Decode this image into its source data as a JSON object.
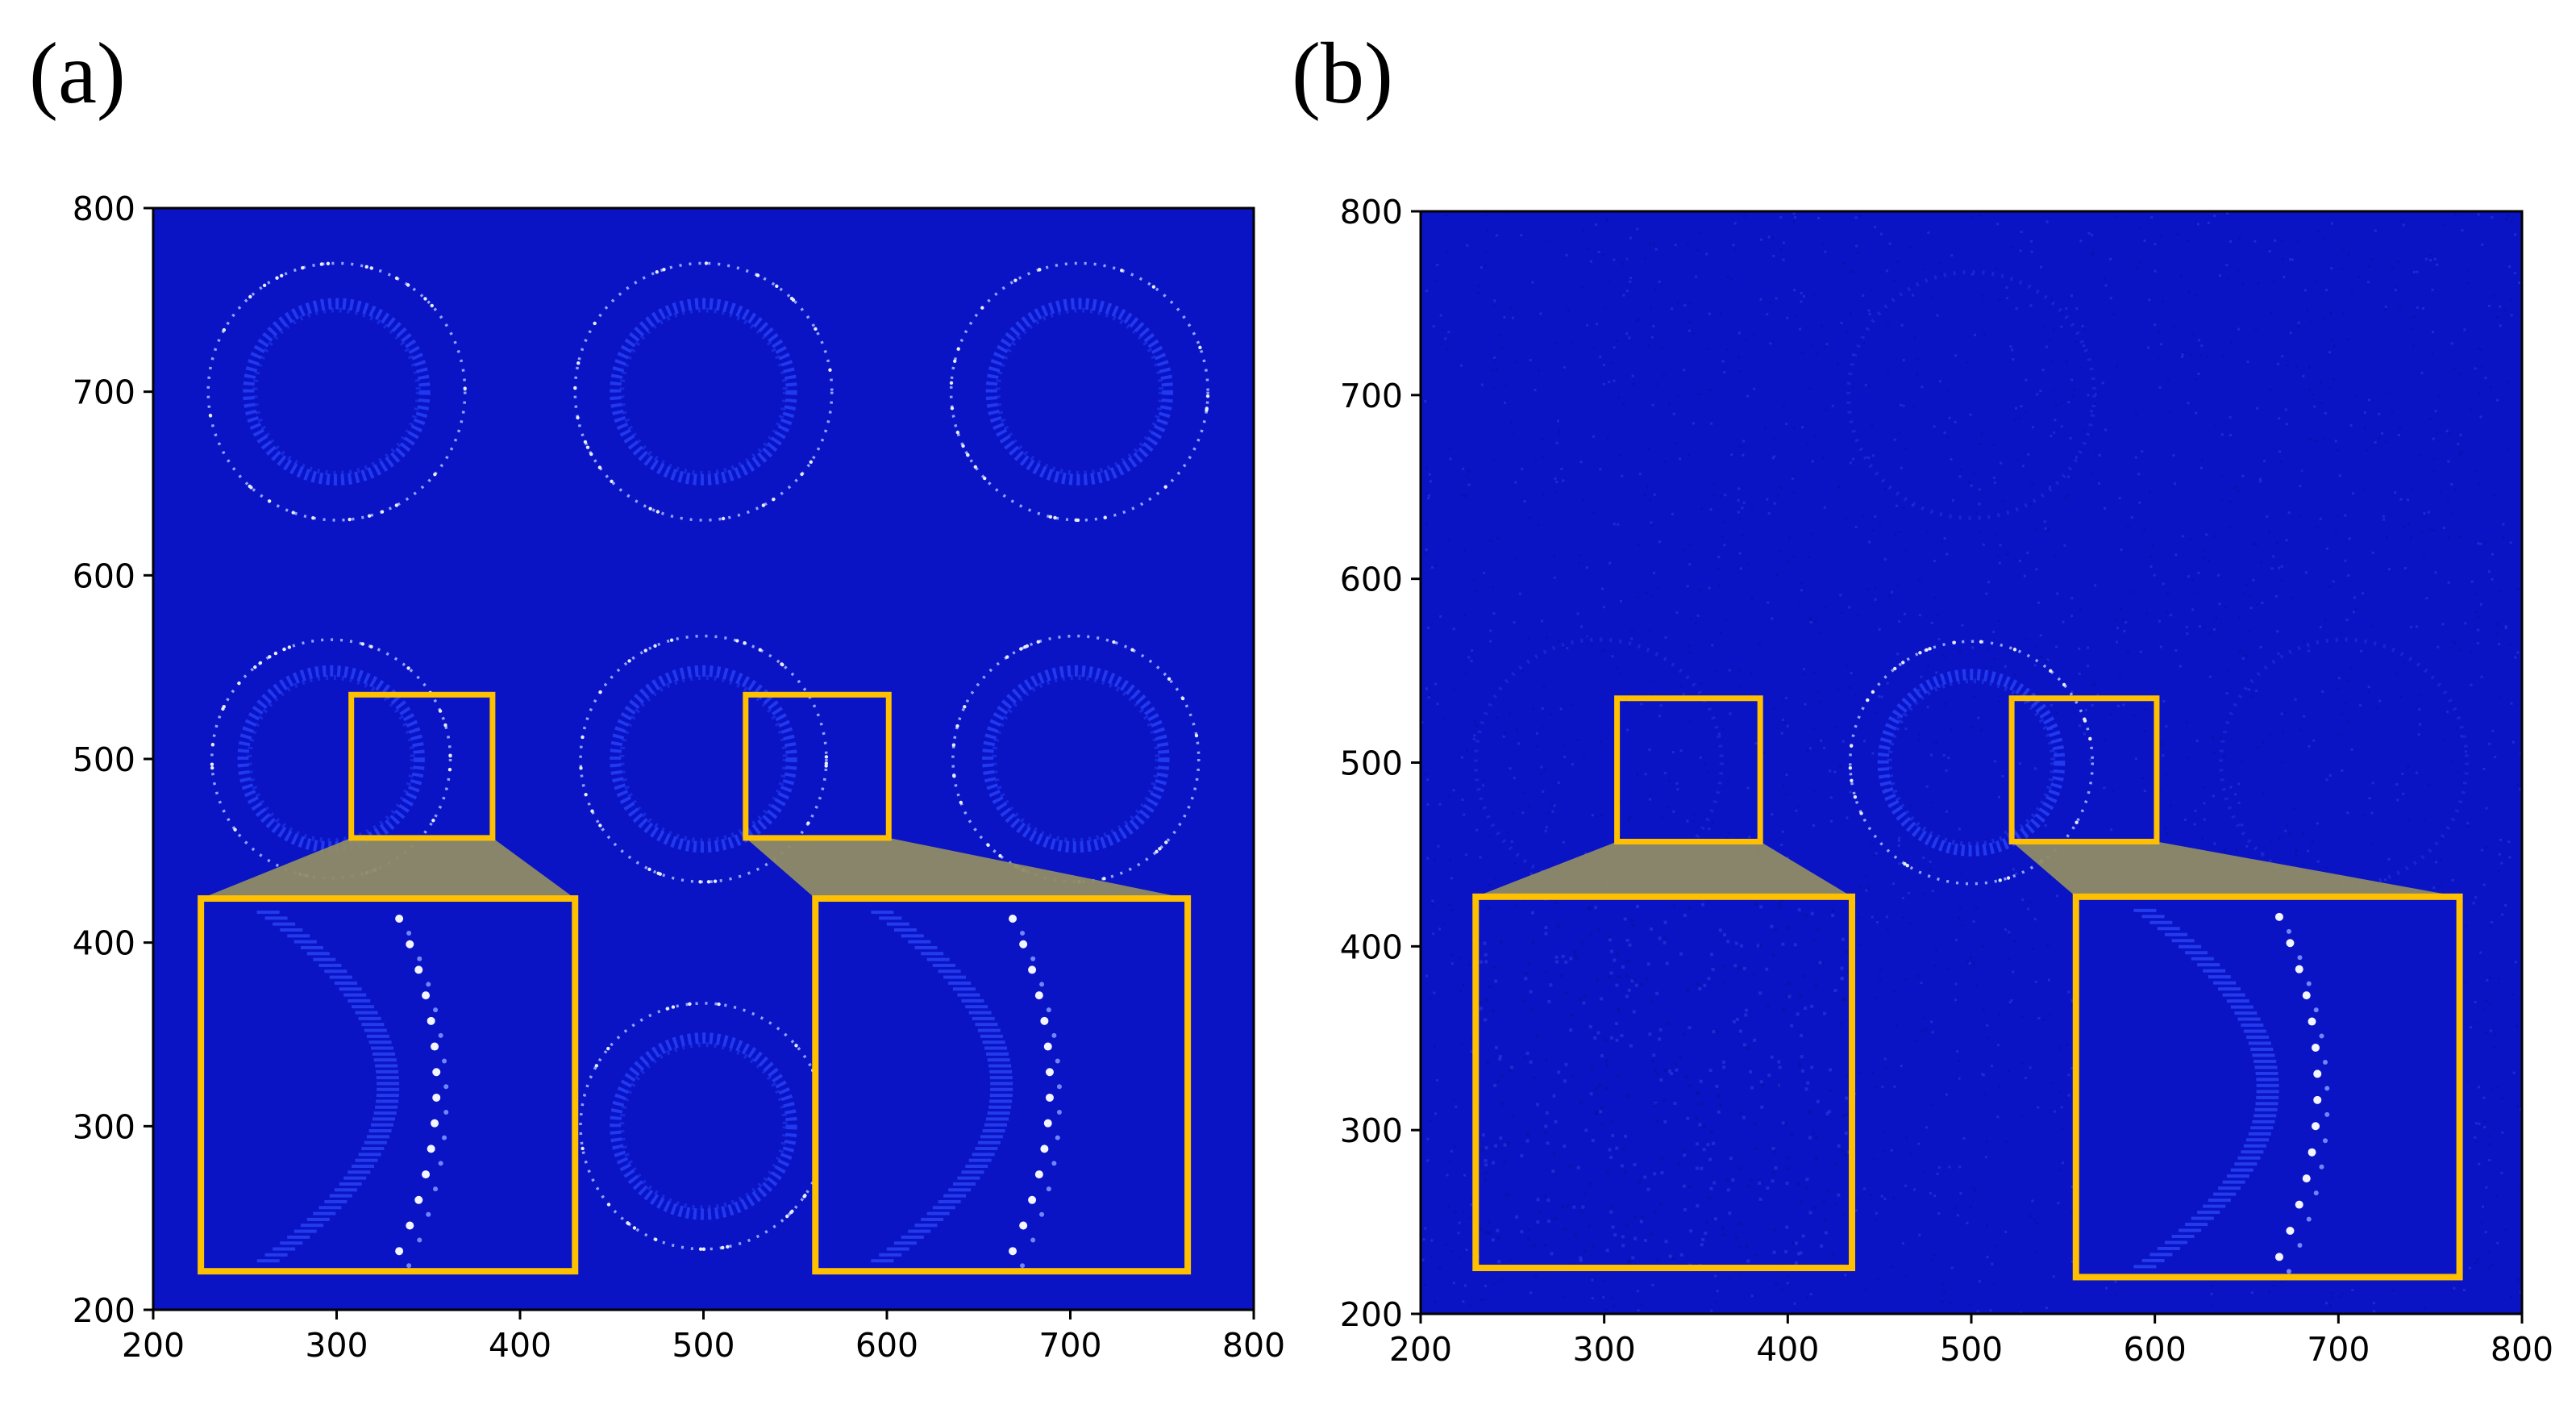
{
  "panels": [
    {
      "label": "(a)"
    },
    {
      "label": "(b)"
    }
  ],
  "chart_data": [
    {
      "type": "heatmap",
      "panel": "(a)",
      "title": "",
      "xlabel": "",
      "ylabel": "",
      "xlim": [
        200,
        800
      ],
      "ylim": [
        200,
        800
      ],
      "xticks": [
        200,
        300,
        400,
        500,
        600,
        700,
        800
      ],
      "yticks": [
        200,
        300,
        400,
        500,
        600,
        700,
        800
      ],
      "background_color": "#0a14c4",
      "rings": [
        {
          "cx": 300,
          "cy": 700,
          "r_outer": 70,
          "r_inner": 48
        },
        {
          "cx": 500,
          "cy": 700,
          "r_outer": 70,
          "r_inner": 48
        },
        {
          "cx": 705,
          "cy": 700,
          "r_outer": 70,
          "r_inner": 48
        },
        {
          "cx": 297,
          "cy": 500,
          "r_outer": 65,
          "r_inner": 48
        },
        {
          "cx": 500,
          "cy": 500,
          "r_outer": 67,
          "r_inner": 48
        },
        {
          "cx": 703,
          "cy": 500,
          "r_outer": 67,
          "r_inner": 48
        },
        {
          "cx": 500,
          "cy": 300,
          "r_outer": 67,
          "r_inner": 48
        }
      ],
      "zoom_boxes": [
        {
          "src": [
            308,
            457,
            385,
            535
          ],
          "dst": [
            226,
            221,
            430,
            424
          ],
          "color": "#ffc000"
        },
        {
          "src": [
            523,
            457,
            601,
            535
          ],
          "dst": [
            561,
            221,
            764,
            424
          ],
          "color": "#ffc000"
        }
      ]
    },
    {
      "type": "heatmap",
      "panel": "(b)",
      "title": "",
      "xlabel": "",
      "ylabel": "",
      "xlim": [
        200,
        800
      ],
      "ylim": [
        200,
        800
      ],
      "xticks": [
        200,
        300,
        400,
        500,
        600,
        700,
        800
      ],
      "yticks": [
        200,
        300,
        400,
        500,
        600,
        700,
        800
      ],
      "background_color": "#0a14c4",
      "rings": [
        {
          "cx": 500,
          "cy": 500,
          "r_outer": 66,
          "r_inner": 48
        }
      ],
      "zoom_boxes": [
        {
          "src": [
            307,
            457,
            385,
            535
          ],
          "dst": [
            230,
            225,
            435,
            427
          ],
          "color": "#ffc000"
        },
        {
          "src": [
            522,
            457,
            601,
            535
          ],
          "dst": [
            557,
            220,
            766,
            427
          ],
          "color": "#ffc000"
        }
      ]
    }
  ]
}
